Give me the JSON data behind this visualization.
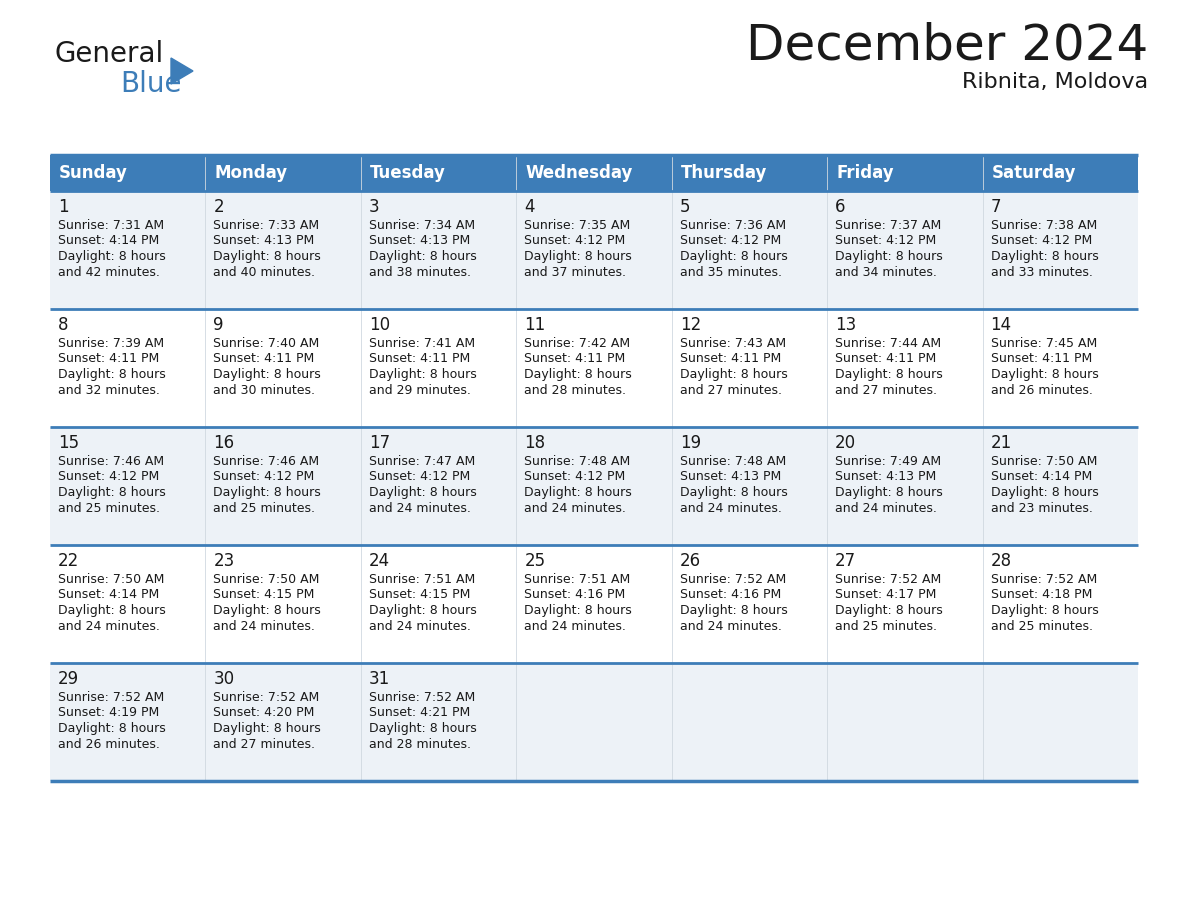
{
  "title": "December 2024",
  "subtitle": "Ribnita, Moldova",
  "header_color": "#3d7db8",
  "header_text_color": "#ffffff",
  "cell_bg_even": "#edf2f7",
  "cell_bg_odd": "#ffffff",
  "separator_color": "#3d7db8",
  "text_color": "#1a1a1a",
  "days_of_week": [
    "Sunday",
    "Monday",
    "Tuesday",
    "Wednesday",
    "Thursday",
    "Friday",
    "Saturday"
  ],
  "weeks": [
    [
      {
        "day": 1,
        "sunrise": "7:31 AM",
        "sunset": "4:14 PM",
        "daylight_hours": 8,
        "daylight_mins": 42
      },
      {
        "day": 2,
        "sunrise": "7:33 AM",
        "sunset": "4:13 PM",
        "daylight_hours": 8,
        "daylight_mins": 40
      },
      {
        "day": 3,
        "sunrise": "7:34 AM",
        "sunset": "4:13 PM",
        "daylight_hours": 8,
        "daylight_mins": 38
      },
      {
        "day": 4,
        "sunrise": "7:35 AM",
        "sunset": "4:12 PM",
        "daylight_hours": 8,
        "daylight_mins": 37
      },
      {
        "day": 5,
        "sunrise": "7:36 AM",
        "sunset": "4:12 PM",
        "daylight_hours": 8,
        "daylight_mins": 35
      },
      {
        "day": 6,
        "sunrise": "7:37 AM",
        "sunset": "4:12 PM",
        "daylight_hours": 8,
        "daylight_mins": 34
      },
      {
        "day": 7,
        "sunrise": "7:38 AM",
        "sunset": "4:12 PM",
        "daylight_hours": 8,
        "daylight_mins": 33
      }
    ],
    [
      {
        "day": 8,
        "sunrise": "7:39 AM",
        "sunset": "4:11 PM",
        "daylight_hours": 8,
        "daylight_mins": 32
      },
      {
        "day": 9,
        "sunrise": "7:40 AM",
        "sunset": "4:11 PM",
        "daylight_hours": 8,
        "daylight_mins": 30
      },
      {
        "day": 10,
        "sunrise": "7:41 AM",
        "sunset": "4:11 PM",
        "daylight_hours": 8,
        "daylight_mins": 29
      },
      {
        "day": 11,
        "sunrise": "7:42 AM",
        "sunset": "4:11 PM",
        "daylight_hours": 8,
        "daylight_mins": 28
      },
      {
        "day": 12,
        "sunrise": "7:43 AM",
        "sunset": "4:11 PM",
        "daylight_hours": 8,
        "daylight_mins": 27
      },
      {
        "day": 13,
        "sunrise": "7:44 AM",
        "sunset": "4:11 PM",
        "daylight_hours": 8,
        "daylight_mins": 27
      },
      {
        "day": 14,
        "sunrise": "7:45 AM",
        "sunset": "4:11 PM",
        "daylight_hours": 8,
        "daylight_mins": 26
      }
    ],
    [
      {
        "day": 15,
        "sunrise": "7:46 AM",
        "sunset": "4:12 PM",
        "daylight_hours": 8,
        "daylight_mins": 25
      },
      {
        "day": 16,
        "sunrise": "7:46 AM",
        "sunset": "4:12 PM",
        "daylight_hours": 8,
        "daylight_mins": 25
      },
      {
        "day": 17,
        "sunrise": "7:47 AM",
        "sunset": "4:12 PM",
        "daylight_hours": 8,
        "daylight_mins": 24
      },
      {
        "day": 18,
        "sunrise": "7:48 AM",
        "sunset": "4:12 PM",
        "daylight_hours": 8,
        "daylight_mins": 24
      },
      {
        "day": 19,
        "sunrise": "7:48 AM",
        "sunset": "4:13 PM",
        "daylight_hours": 8,
        "daylight_mins": 24
      },
      {
        "day": 20,
        "sunrise": "7:49 AM",
        "sunset": "4:13 PM",
        "daylight_hours": 8,
        "daylight_mins": 24
      },
      {
        "day": 21,
        "sunrise": "7:50 AM",
        "sunset": "4:14 PM",
        "daylight_hours": 8,
        "daylight_mins": 23
      }
    ],
    [
      {
        "day": 22,
        "sunrise": "7:50 AM",
        "sunset": "4:14 PM",
        "daylight_hours": 8,
        "daylight_mins": 24
      },
      {
        "day": 23,
        "sunrise": "7:50 AM",
        "sunset": "4:15 PM",
        "daylight_hours": 8,
        "daylight_mins": 24
      },
      {
        "day": 24,
        "sunrise": "7:51 AM",
        "sunset": "4:15 PM",
        "daylight_hours": 8,
        "daylight_mins": 24
      },
      {
        "day": 25,
        "sunrise": "7:51 AM",
        "sunset": "4:16 PM",
        "daylight_hours": 8,
        "daylight_mins": 24
      },
      {
        "day": 26,
        "sunrise": "7:52 AM",
        "sunset": "4:16 PM",
        "daylight_hours": 8,
        "daylight_mins": 24
      },
      {
        "day": 27,
        "sunrise": "7:52 AM",
        "sunset": "4:17 PM",
        "daylight_hours": 8,
        "daylight_mins": 25
      },
      {
        "day": 28,
        "sunrise": "7:52 AM",
        "sunset": "4:18 PM",
        "daylight_hours": 8,
        "daylight_mins": 25
      }
    ],
    [
      {
        "day": 29,
        "sunrise": "7:52 AM",
        "sunset": "4:19 PM",
        "daylight_hours": 8,
        "daylight_mins": 26
      },
      {
        "day": 30,
        "sunrise": "7:52 AM",
        "sunset": "4:20 PM",
        "daylight_hours": 8,
        "daylight_mins": 27
      },
      {
        "day": 31,
        "sunrise": "7:52 AM",
        "sunset": "4:21 PM",
        "daylight_hours": 8,
        "daylight_mins": 28
      },
      null,
      null,
      null,
      null
    ]
  ],
  "logo_general_color": "#1a1a1a",
  "logo_blue_color": "#3d7db8",
  "title_fontsize": 36,
  "subtitle_fontsize": 16,
  "header_fontsize": 12,
  "day_number_fontsize": 12,
  "cell_text_fontsize": 9
}
